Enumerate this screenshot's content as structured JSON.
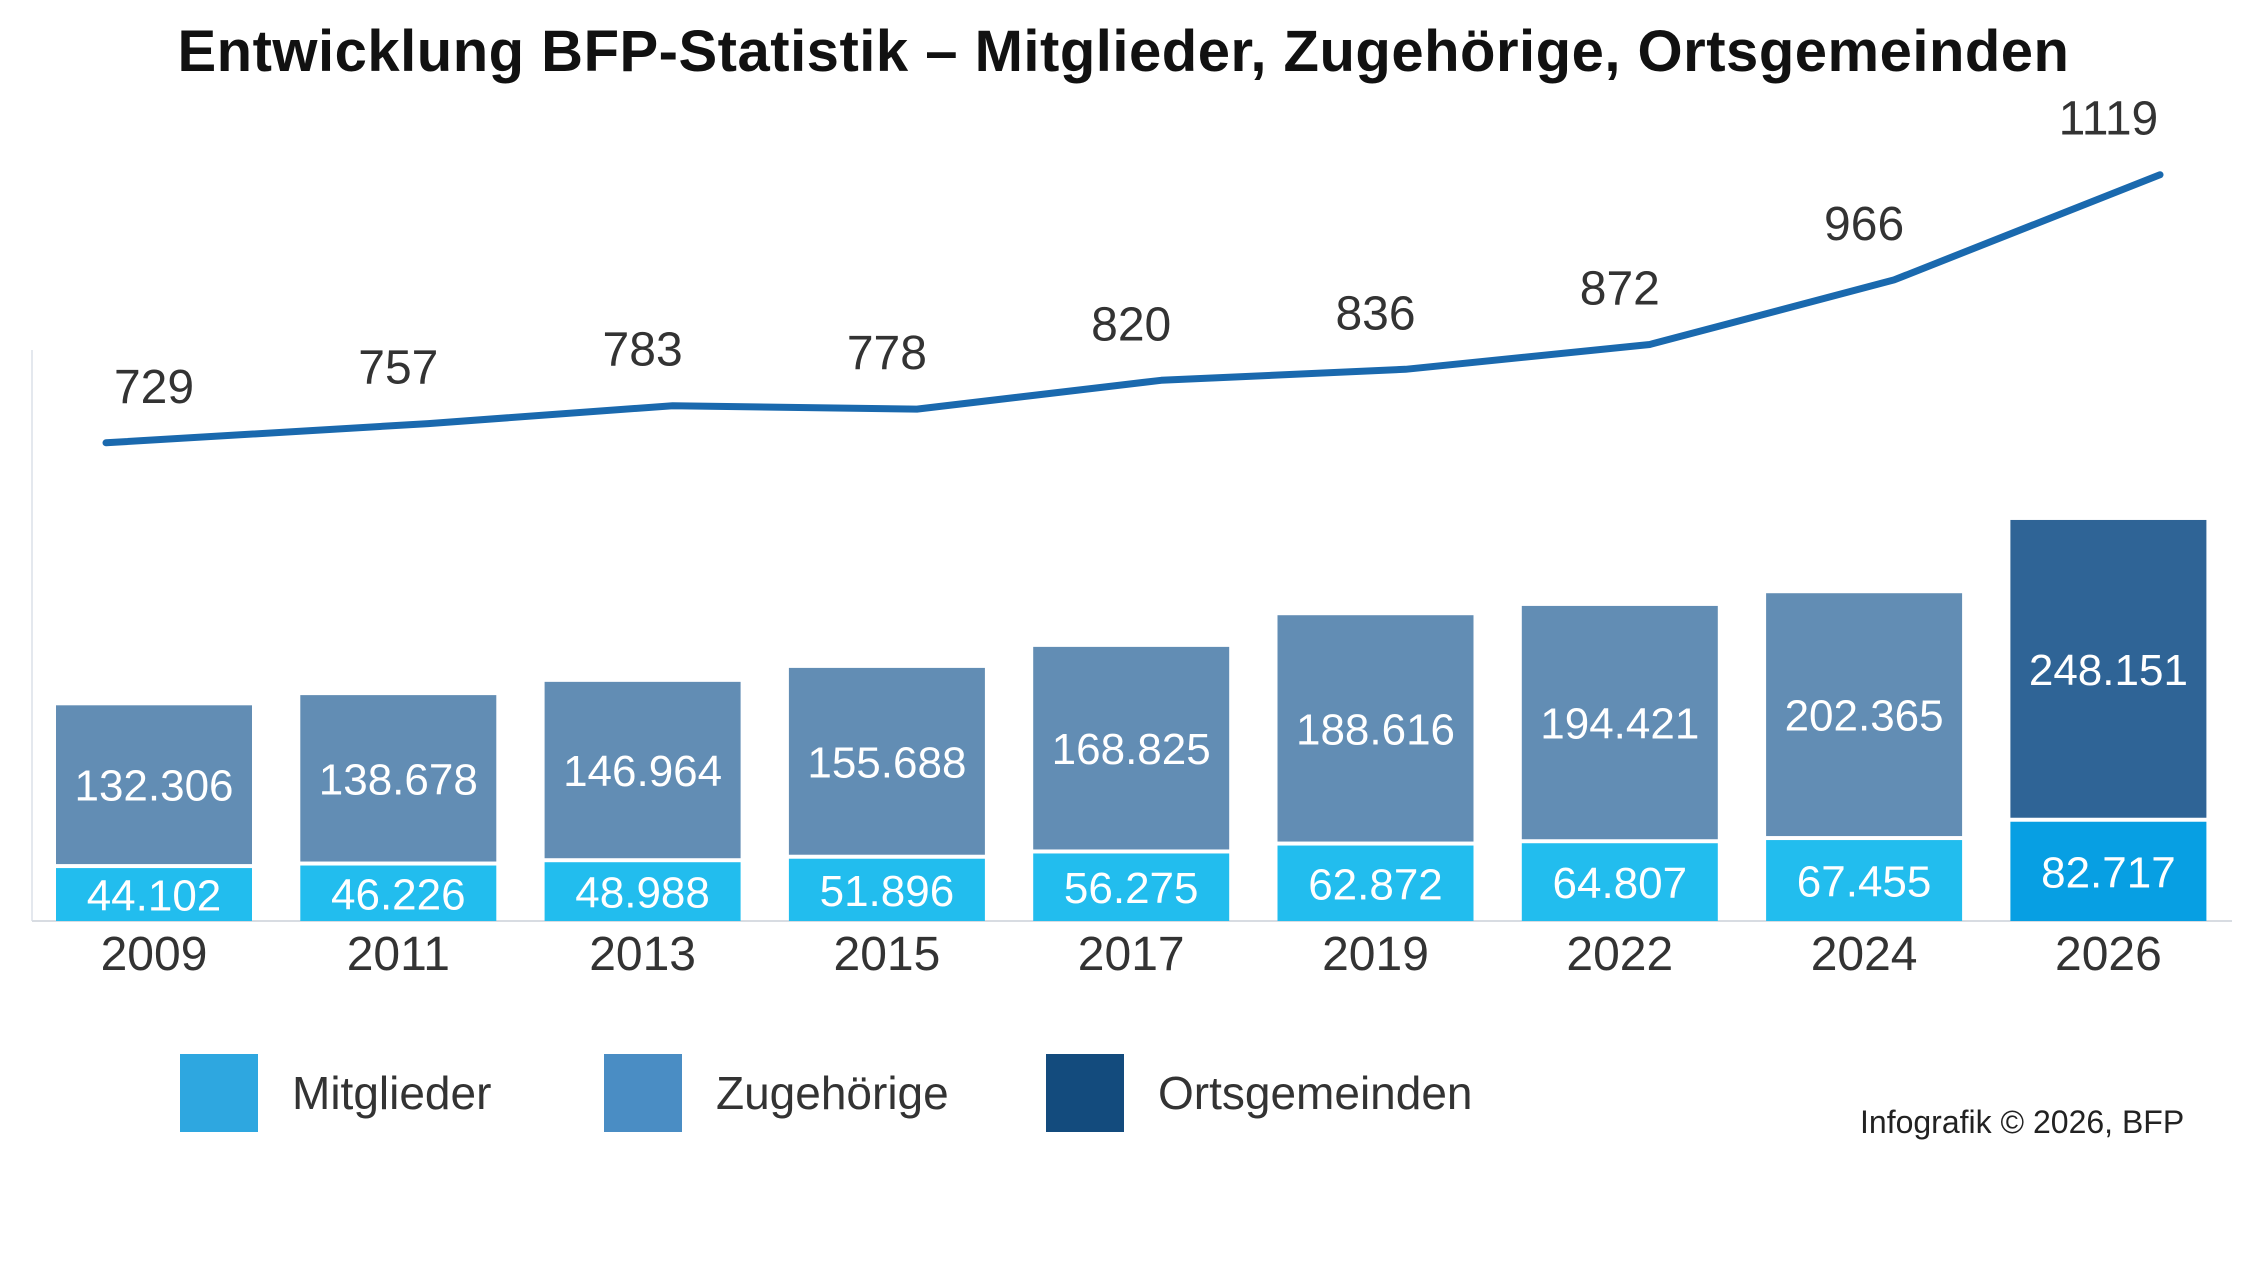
{
  "title": "Entwicklung BFP-Statistik – Mitglieder, Zugehörige, Ortsgemeinden",
  "credit": "Infografik © 2026, BFP",
  "legend": [
    {
      "label": "Mitglieder",
      "color": "#2EA7E0"
    },
    {
      "label": "Zugehörige",
      "color": "#4A8DC4"
    },
    {
      "label": "Ortsgemeinden",
      "color": "#134B7D"
    }
  ],
  "chart_data": {
    "type": "bar",
    "categories": [
      "2009",
      "2011",
      "2013",
      "2015",
      "2017",
      "2019",
      "2022",
      "2024",
      "2026"
    ],
    "series": [
      {
        "name": "Mitglieder",
        "kind": "stacked-bar",
        "values": [
          44102,
          46226,
          48988,
          51896,
          56275,
          62872,
          64807,
          67455,
          82717
        ],
        "labels": [
          "44.102",
          "46.226",
          "48.988",
          "51.896",
          "56.275",
          "62.872",
          "64.807",
          "67.455",
          "82.717"
        ],
        "color": "#22BDEE",
        "highlight_color": "#079FE3"
      },
      {
        "name": "Zugehörige",
        "kind": "stacked-bar",
        "values": [
          132306,
          138678,
          146964,
          155688,
          168825,
          188616,
          194421,
          202365,
          248151
        ],
        "labels": [
          "132.306",
          "138.678",
          "146.964",
          "155.688",
          "168.825",
          "188.616",
          "194.421",
          "202.365",
          "248.151"
        ],
        "color": "#628DB4",
        "highlight_color": "#2F6496"
      },
      {
        "name": "Ortsgemeinden",
        "kind": "line",
        "values": [
          729,
          757,
          783,
          778,
          820,
          836,
          872,
          966,
          1119
        ],
        "labels": [
          "729",
          "757",
          "783",
          "778",
          "820",
          "836",
          "872",
          "966",
          "1119"
        ],
        "color": "#1A69AE"
      }
    ],
    "highlight_category": "2026",
    "grid": false,
    "legend_position": "bottom-left"
  }
}
